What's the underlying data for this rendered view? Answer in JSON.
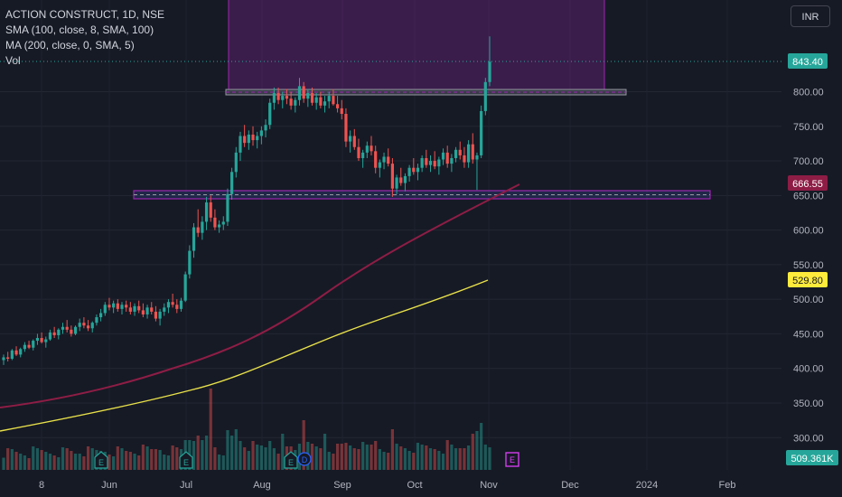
{
  "legend": {
    "symbol_line": "ACTION CONSTRUCT, 1D, NSE",
    "sma100": "SMA (100, close, 8, SMA, 100)",
    "ma200": "MA (200, close, 0, SMA, 5)",
    "vol": "Vol"
  },
  "currency": "INR",
  "colors": {
    "background": "#161a25",
    "up": "#26a69a",
    "down": "#ef5350",
    "sma100": "#e8e04a",
    "ma200": "#8e1d45",
    "zone": "#9c27b0",
    "support_line": "#9c27b0",
    "price_badge": "#26a69a",
    "ma200_badge": "#8e1d45",
    "sma100_badge": "#ffeb3b"
  },
  "price_labels": {
    "last": "843.40",
    "ma200": "666.55",
    "sma100": "529.80",
    "volume": "509.361K"
  },
  "events": {
    "earnings_label": "E",
    "dividend_label": "D"
  },
  "chart_data": {
    "type": "candlestick",
    "symbol": "ACTION CONSTRUCT",
    "timeframe": "1D",
    "exchange": "NSE",
    "y_axis": {
      "range": [
        275,
        900
      ],
      "ticks": [
        "800.00",
        "750.00",
        "700.00",
        "650.00",
        "600.00",
        "550.00",
        "500.00",
        "450.00",
        "400.00",
        "350.00",
        "300.00"
      ]
    },
    "x_axis": {
      "ticks": [
        "8",
        "Jun",
        "Jul",
        "Aug",
        "Sep",
        "Oct",
        "Nov",
        "Dec",
        "2024",
        "Feb"
      ]
    },
    "last_price": 843.4,
    "sma100_last": 529.8,
    "ma200_last": 666.55,
    "volume_last": "509.361K",
    "zones": [
      {
        "name": "resistance-box",
        "price_from": 800,
        "price_to": 900,
        "from": "Jul 20",
        "to": "Dec 15"
      },
      {
        "name": "support-band",
        "price_from": 648,
        "price_to": 658,
        "from": "May 1",
        "to": "Jan 1"
      }
    ],
    "candles": [
      [
        412,
        420,
        405,
        416
      ],
      [
        416,
        424,
        410,
        414
      ],
      [
        414,
        428,
        412,
        426
      ],
      [
        426,
        432,
        418,
        420
      ],
      [
        420,
        430,
        416,
        428
      ],
      [
        428,
        438,
        424,
        434
      ],
      [
        434,
        440,
        428,
        430
      ],
      [
        430,
        442,
        426,
        440
      ],
      [
        440,
        450,
        434,
        444
      ],
      [
        444,
        452,
        436,
        438
      ],
      [
        438,
        446,
        430,
        442
      ],
      [
        442,
        456,
        440,
        452
      ],
      [
        452,
        460,
        444,
        448
      ],
      [
        448,
        458,
        442,
        456
      ],
      [
        456,
        466,
        450,
        460
      ],
      [
        460,
        470,
        452,
        456
      ],
      [
        456,
        462,
        446,
        450
      ],
      [
        450,
        462,
        448,
        460
      ],
      [
        460,
        472,
        454,
        466
      ],
      [
        466,
        474,
        458,
        462
      ],
      [
        462,
        470,
        454,
        458
      ],
      [
        458,
        468,
        452,
        466
      ],
      [
        466,
        478,
        462,
        474
      ],
      [
        474,
        486,
        468,
        480
      ],
      [
        480,
        496,
        476,
        492
      ],
      [
        492,
        502,
        484,
        488
      ],
      [
        488,
        498,
        480,
        494
      ],
      [
        494,
        500,
        482,
        486
      ],
      [
        486,
        496,
        478,
        492
      ],
      [
        492,
        498,
        482,
        488
      ],
      [
        488,
        496,
        478,
        482
      ],
      [
        482,
        494,
        476,
        490
      ],
      [
        490,
        498,
        480,
        484
      ],
      [
        484,
        494,
        474,
        478
      ],
      [
        478,
        492,
        472,
        488
      ],
      [
        488,
        496,
        478,
        482
      ],
      [
        482,
        490,
        468,
        472
      ],
      [
        472,
        486,
        462,
        482
      ],
      [
        482,
        494,
        476,
        488
      ],
      [
        488,
        500,
        480,
        496
      ],
      [
        496,
        508,
        488,
        492
      ],
      [
        492,
        500,
        480,
        486
      ],
      [
        486,
        502,
        482,
        498
      ],
      [
        498,
        540,
        496,
        536
      ],
      [
        536,
        578,
        530,
        570
      ],
      [
        570,
        610,
        560,
        604
      ],
      [
        604,
        630,
        590,
        596
      ],
      [
        596,
        620,
        586,
        612
      ],
      [
        612,
        648,
        600,
        640
      ],
      [
        640,
        650,
        612,
        618
      ],
      [
        618,
        630,
        600,
        604
      ],
      [
        604,
        614,
        596,
        608
      ],
      [
        608,
        620,
        600,
        612
      ],
      [
        612,
        660,
        606,
        652
      ],
      [
        652,
        690,
        644,
        684
      ],
      [
        684,
        720,
        676,
        712
      ],
      [
        712,
        742,
        700,
        736
      ],
      [
        736,
        752,
        720,
        726
      ],
      [
        726,
        744,
        716,
        738
      ],
      [
        738,
        750,
        722,
        730
      ],
      [
        730,
        742,
        718,
        736
      ],
      [
        736,
        750,
        724,
        744
      ],
      [
        744,
        760,
        734,
        752
      ],
      [
        752,
        790,
        746,
        784
      ],
      [
        784,
        806,
        774,
        798
      ],
      [
        798,
        806,
        782,
        788
      ],
      [
        788,
        800,
        776,
        794
      ],
      [
        794,
        804,
        782,
        790
      ],
      [
        790,
        800,
        774,
        780
      ],
      [
        780,
        792,
        770,
        788
      ],
      [
        788,
        820,
        780,
        808
      ],
      [
        808,
        814,
        784,
        790
      ],
      [
        790,
        804,
        778,
        798
      ],
      [
        798,
        806,
        780,
        784
      ],
      [
        784,
        798,
        774,
        792
      ],
      [
        792,
        800,
        776,
        780
      ],
      [
        780,
        794,
        770,
        786
      ],
      [
        786,
        800,
        776,
        794
      ],
      [
        794,
        804,
        780,
        782
      ],
      [
        782,
        794,
        770,
        776
      ],
      [
        776,
        788,
        760,
        768
      ],
      [
        768,
        776,
        720,
        728
      ],
      [
        728,
        744,
        712,
        736
      ],
      [
        736,
        746,
        716,
        720
      ],
      [
        720,
        732,
        700,
        704
      ],
      [
        704,
        716,
        690,
        712
      ],
      [
        712,
        728,
        704,
        722
      ],
      [
        722,
        736,
        708,
        714
      ],
      [
        714,
        722,
        682,
        690
      ],
      [
        690,
        702,
        676,
        698
      ],
      [
        698,
        712,
        688,
        706
      ],
      [
        706,
        718,
        692,
        696
      ],
      [
        696,
        704,
        648,
        660
      ],
      [
        660,
        680,
        652,
        676
      ],
      [
        676,
        690,
        664,
        668
      ],
      [
        668,
        682,
        656,
        678
      ],
      [
        678,
        694,
        670,
        690
      ],
      [
        690,
        704,
        680,
        684
      ],
      [
        684,
        696,
        672,
        690
      ],
      [
        690,
        708,
        684,
        704
      ],
      [
        704,
        716,
        690,
        694
      ],
      [
        694,
        708,
        684,
        700
      ],
      [
        700,
        714,
        688,
        692
      ],
      [
        692,
        706,
        680,
        702
      ],
      [
        702,
        718,
        694,
        712
      ],
      [
        712,
        722,
        690,
        696
      ],
      [
        696,
        710,
        684,
        704
      ],
      [
        704,
        720,
        698,
        716
      ],
      [
        716,
        728,
        702,
        708
      ],
      [
        708,
        720,
        690,
        698
      ],
      [
        698,
        730,
        690,
        724
      ],
      [
        724,
        740,
        696,
        702
      ],
      [
        702,
        712,
        658,
        708
      ],
      [
        708,
        780,
        704,
        772
      ],
      [
        772,
        820,
        766,
        814
      ],
      [
        814,
        880,
        808,
        843.4
      ]
    ]
  }
}
